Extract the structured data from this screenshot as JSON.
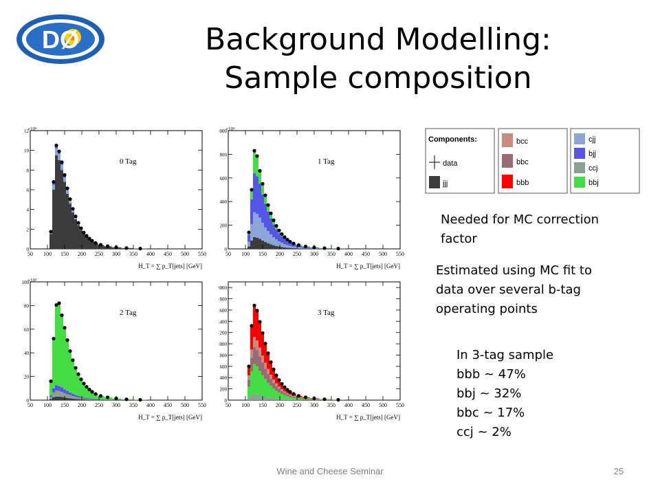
{
  "slide": {
    "title_line1": "Background Modelling:",
    "title_line2": "Sample composition",
    "logo_text": "DØ",
    "note1": [
      "Needed for MC correction",
      "factor"
    ],
    "note2": [
      "Estimated using MC fit to",
      "data over several b-tag",
      "operating points"
    ],
    "note3": [
      "In 3-tag sample",
      "bbb ~ 47%",
      "bbj  ~ 32%",
      "bbc  ~ 17%",
      "ccj ~ 2%"
    ],
    "footer_center": "Wine and Cheese Seminar",
    "page_number": "25"
  },
  "legend": {
    "title": "Components:",
    "items": [
      {
        "key": "data",
        "label": "data",
        "color": "#000000"
      },
      {
        "key": "jjj",
        "label": "jjj",
        "color": "#3c3c3c"
      },
      {
        "key": "bcc",
        "label": "bcc",
        "color": "#c98a80"
      },
      {
        "key": "bbc",
        "label": "bbc",
        "color": "#9a6b75"
      },
      {
        "key": "bbb",
        "label": "bbb",
        "color": "#ff0000"
      },
      {
        "key": "cjj",
        "label": "cjj",
        "color": "#8aa6d6"
      },
      {
        "key": "bjj",
        "label": "bjj",
        "color": "#5555e6"
      },
      {
        "key": "ccj",
        "label": "ccj",
        "color": "#8aa390"
      },
      {
        "key": "bbj",
        "label": "bbj",
        "color": "#44dd44"
      }
    ]
  },
  "chart_data": [
    {
      "type": "area",
      "title": "0 Tag",
      "exponent": "×10³",
      "xlim": [
        50,
        550
      ],
      "ylim": [
        0,
        12000
      ],
      "yticks": [
        0,
        2,
        4,
        6,
        8,
        10,
        12
      ],
      "xticks": [
        50,
        100,
        150,
        200,
        250,
        300,
        350,
        400,
        450,
        500,
        550
      ],
      "xlabel": "H_T = ∑ p_T[jets] [GeV]",
      "x": [
        110,
        118,
        126,
        134,
        142,
        150,
        158,
        166,
        174,
        182,
        190,
        198,
        206,
        214,
        222,
        230,
        240,
        255,
        275,
        300,
        330,
        370
      ],
      "series": [
        {
          "name": "jjj",
          "values": [
            1500,
            6000,
            9500,
            9000,
            8000,
            6800,
            5600,
            4600,
            3700,
            3000,
            2400,
            1900,
            1500,
            1200,
            950,
            750,
            550,
            380,
            250,
            150,
            80,
            30
          ]
        },
        {
          "name": "cjj",
          "values": [
            150,
            500,
            700,
            650,
            550,
            450,
            380,
            320,
            260,
            210,
            170,
            140,
            110,
            90,
            70,
            55,
            40,
            30,
            20,
            12,
            6,
            2
          ]
        },
        {
          "name": "bjj",
          "values": [
            60,
            200,
            300,
            280,
            240,
            200,
            160,
            130,
            110,
            90,
            70,
            55,
            45,
            35,
            28,
            22,
            16,
            12,
            8,
            5,
            3,
            1
          ]
        }
      ],
      "data": [
        1750,
        6800,
        10500,
        9900,
        8800,
        7500,
        6150,
        5050,
        4070,
        3300,
        2640,
        2095,
        1655,
        1325,
        1048,
        827,
        606,
        422,
        278,
        167,
        89,
        33
      ]
    },
    {
      "type": "area",
      "title": "1 Tag",
      "exponent": "×10³",
      "xlim": [
        50,
        550
      ],
      "ylim": [
        0,
        1000000
      ],
      "yticks": [
        0,
        200,
        400,
        600,
        800,
        1000
      ],
      "xticks": [
        50,
        100,
        150,
        200,
        250,
        300,
        350,
        400,
        450,
        500,
        550
      ],
      "xlabel": "H_T = ∑ p_T[jets] [GeV]",
      "x": [
        110,
        118,
        126,
        134,
        142,
        150,
        158,
        166,
        174,
        182,
        190,
        198,
        206,
        214,
        222,
        230,
        240,
        255,
        275,
        300,
        330,
        370
      ],
      "series": [
        {
          "name": "jjj",
          "values": [
            20000,
            70000,
            100000,
            95000,
            85000,
            70000,
            58000,
            48000,
            39000,
            31000,
            25000,
            20000,
            16000,
            12500,
            10000,
            8000,
            6000,
            4000,
            2500,
            1500,
            800,
            300
          ]
        },
        {
          "name": "cjj",
          "values": [
            40000,
            140000,
            210000,
            200000,
            180000,
            150000,
            125000,
            103000,
            84000,
            68000,
            55000,
            44000,
            35000,
            28000,
            22000,
            17000,
            13000,
            9000,
            6000,
            3500,
            1800,
            700
          ]
        },
        {
          "name": "bjj",
          "values": [
            60000,
            210000,
            330000,
            320000,
            285000,
            240000,
            200000,
            165000,
            133000,
            107000,
            86000,
            69000,
            55000,
            44000,
            34000,
            27000,
            20000,
            14000,
            9000,
            5500,
            2800,
            1000
          ]
        },
        {
          "name": "bbj",
          "values": [
            20000,
            80000,
            180000,
            160000,
            110000,
            90000,
            70000,
            55000,
            45000,
            36000,
            29000,
            23000,
            19000,
            15000,
            12000,
            9500,
            7000,
            5000,
            3200,
            2000,
            1000,
            400
          ]
        }
      ],
      "data": [
        140000,
        500000,
        830000,
        785000,
        660000,
        550000,
        453000,
        371000,
        301000,
        242000,
        195000,
        156000,
        125000,
        99500,
        78000,
        61500,
        46000,
        32000,
        20700,
        12500,
        6400,
        2400
      ]
    },
    {
      "type": "area",
      "title": "2 Tag",
      "exponent": "×10³",
      "xlim": [
        50,
        550
      ],
      "ylim": [
        0,
        100000
      ],
      "yticks": [
        0,
        20,
        40,
        60,
        80,
        100
      ],
      "xticks": [
        50,
        100,
        150,
        200,
        250,
        300,
        350,
        400,
        450,
        500,
        550
      ],
      "xlabel": "H_T = ∑ p_T[jets] [GeV]",
      "x": [
        110,
        118,
        126,
        134,
        142,
        150,
        158,
        166,
        174,
        182,
        190,
        198,
        206,
        214,
        222,
        230,
        240,
        255,
        275,
        300,
        330,
        370
      ],
      "series": [
        {
          "name": "jjj",
          "values": [
            1000,
            2500,
            3000,
            2900,
            2600,
            2200,
            1900,
            1600,
            1300,
            1050,
            850,
            700,
            560,
            450,
            360,
            290,
            220,
            150,
            100,
            60,
            30,
            12
          ]
        },
        {
          "name": "ccj",
          "values": [
            1500,
            4000,
            5000,
            4800,
            4300,
            3700,
            3100,
            2600,
            2100,
            1700,
            1400,
            1100,
            900,
            720,
            580,
            460,
            350,
            240,
            160,
            95,
            50,
            20
          ]
        },
        {
          "name": "bjj",
          "values": [
            1500,
            3500,
            4500,
            4300,
            3900,
            3300,
            2800,
            2300,
            1900,
            1550,
            1250,
            1000,
            800,
            650,
            520,
            410,
            310,
            215,
            140,
            85,
            45,
            18
          ]
        },
        {
          "name": "bbj",
          "values": [
            12000,
            42000,
            68000,
            70000,
            61000,
            52000,
            43000,
            35000,
            28500,
            23000,
            18500,
            14800,
            11800,
            9400,
            7500,
            5900,
            4400,
            3000,
            1950,
            1150,
            600,
            230
          ]
        }
      ],
      "data": [
        16000,
        52000,
        80500,
        82000,
        71800,
        61200,
        50800,
        41500,
        33800,
        27300,
        22000,
        17600,
        14060,
        11220,
        8960,
        7060,
        5280,
        3605,
        2350,
        1390,
        725,
        280
      ]
    },
    {
      "type": "area",
      "title": "3 Tag",
      "exponent": "",
      "xlim": [
        50,
        550
      ],
      "ylim": [
        0,
        2100
      ],
      "yticks": [
        0,
        200,
        400,
        600,
        800,
        1000,
        1200,
        1400,
        1600,
        1800,
        2000
      ],
      "xticks": [
        50,
        100,
        150,
        200,
        250,
        300,
        350,
        400,
        450,
        500,
        550
      ],
      "xlabel": "H_T = ∑ p_T[jets] [GeV]",
      "x": [
        110,
        118,
        126,
        134,
        142,
        150,
        158,
        166,
        174,
        182,
        190,
        198,
        206,
        214,
        222,
        230,
        240,
        255,
        275,
        300,
        330,
        370
      ],
      "series": [
        {
          "name": "ccj",
          "values": [
            40,
            90,
            110,
            100,
            80,
            65,
            55,
            45,
            38,
            31,
            25,
            20,
            16,
            13,
            10,
            8,
            6,
            4,
            3,
            2,
            1,
            0
          ]
        },
        {
          "name": "bbj",
          "values": [
            200,
            420,
            530,
            500,
            440,
            380,
            320,
            265,
            215,
            175,
            142,
            115,
            92,
            74,
            59,
            47,
            36,
            25,
            16,
            10,
            5,
            2
          ]
        },
        {
          "name": "bbc",
          "values": [
            120,
            240,
            300,
            290,
            260,
            220,
            185,
            155,
            125,
            102,
            83,
            67,
            54,
            43,
            35,
            28,
            21,
            15,
            10,
            6,
            3,
            1
          ]
        },
        {
          "name": "bcc",
          "values": [
            80,
            150,
            180,
            170,
            150,
            125,
            105,
            88,
            72,
            58,
            47,
            38,
            31,
            25,
            20,
            16,
            12,
            8,
            5,
            3,
            2,
            1
          ]
        },
        {
          "name": "bbb",
          "values": [
            160,
            420,
            560,
            530,
            460,
            400,
            340,
            280,
            225,
            180,
            145,
            118,
            95,
            76,
            61,
            48,
            36,
            25,
            16,
            10,
            5,
            2
          ]
        }
      ],
      "data": [
        600,
        1320,
        1680,
        1590,
        1390,
        1190,
        1005,
        833,
        675,
        546,
        442,
        358,
        288,
        231,
        185,
        147,
        111,
        77,
        50,
        31,
        16,
        6
      ]
    }
  ]
}
